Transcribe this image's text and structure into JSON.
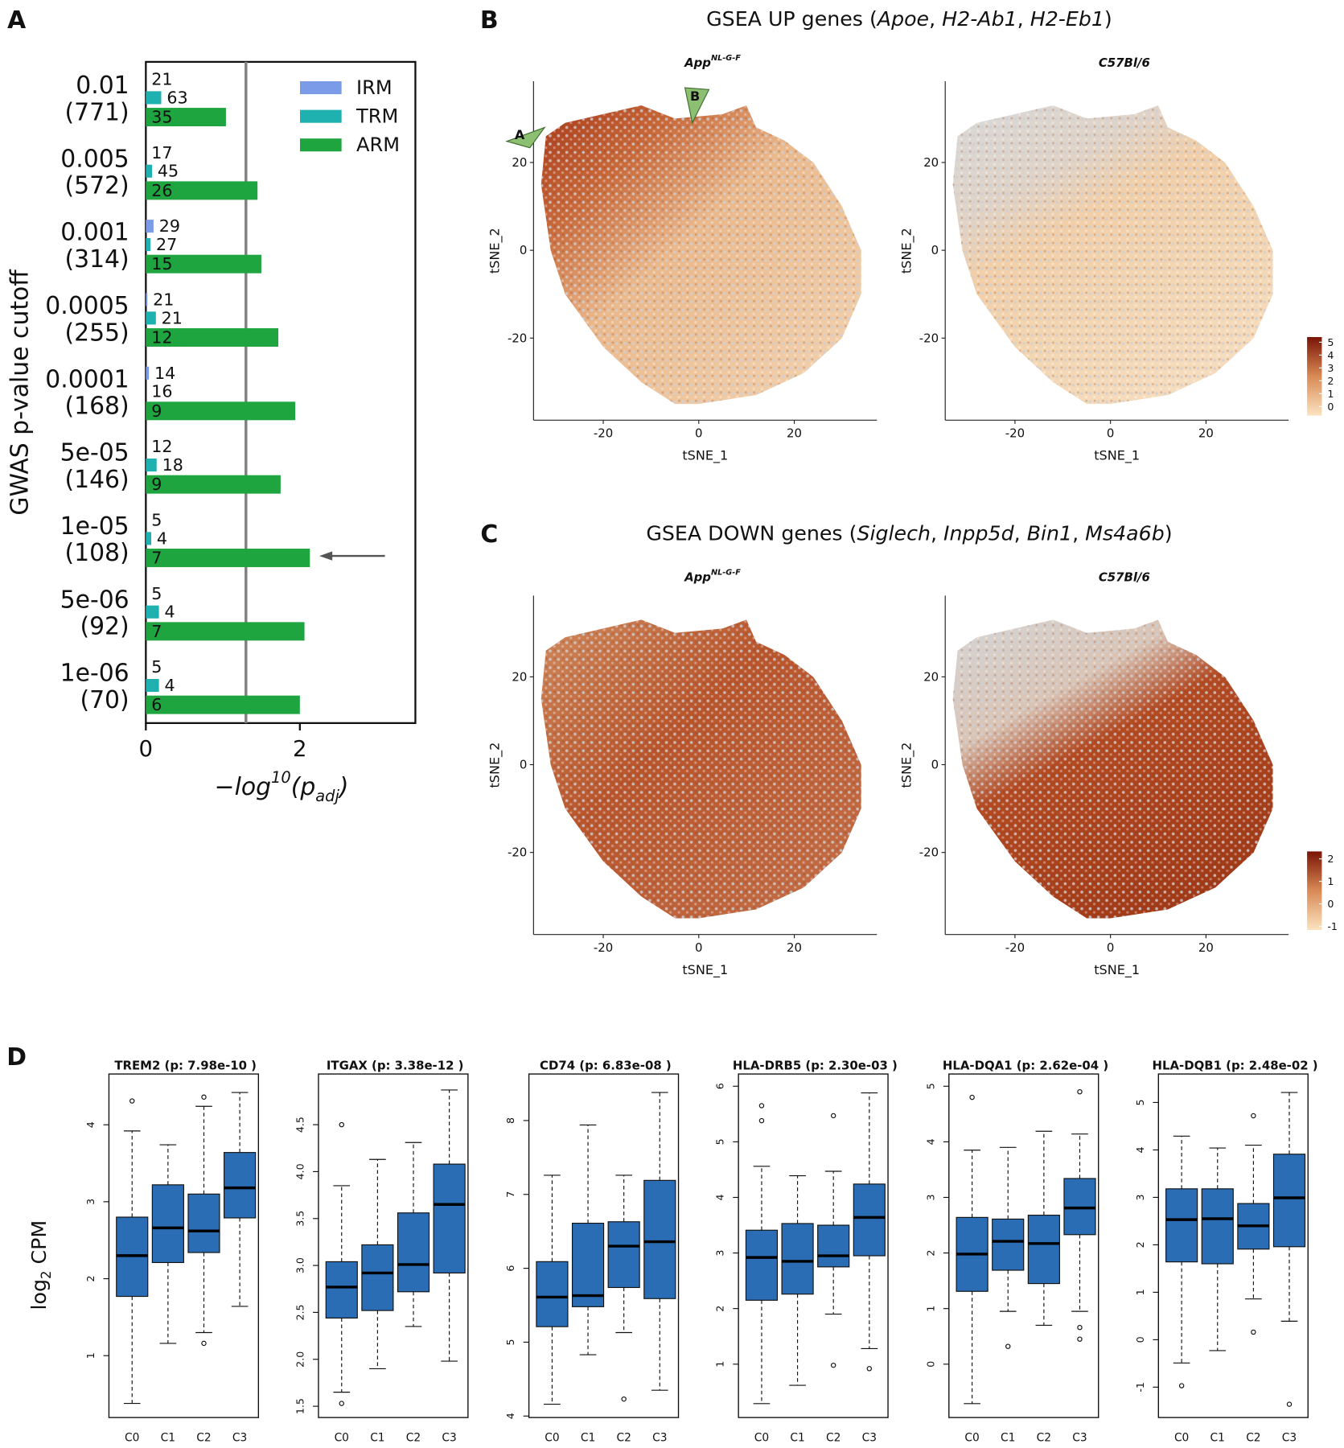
{
  "chart_data": [
    {
      "type": "bar",
      "orientation": "horizontal",
      "panel": "A",
      "ylabel": "GWAS p-value cutoff",
      "xlabel": [
        {
          "text": "−log"
        },
        {
          "text": "10",
          "style": "sup"
        },
        {
          "text": "(p"
        },
        {
          "text": "adj",
          "style": "sub"
        },
        {
          "text": ")"
        }
      ],
      "categories": [
        "0.01",
        "0.005",
        "0.001",
        "0.0005",
        "0.0001",
        "5e-05",
        "1e-05",
        "5e-06",
        "1e-06"
      ],
      "category_counts": [
        "(771)",
        "(572)",
        "(314)",
        "(255)",
        "(168)",
        "(146)",
        "(108)",
        "(92)",
        "(70)"
      ],
      "series": [
        {
          "name": "IRM",
          "color": "#7b9be8",
          "values": [
            0,
            0,
            0.1,
            0.02,
            0.04,
            0,
            0,
            0,
            0
          ],
          "counts": [
            21,
            17,
            29,
            21,
            14,
            12,
            5,
            5,
            5
          ]
        },
        {
          "name": "TRM",
          "color": "#1fb0b0",
          "values": [
            0.2,
            0.08,
            0.06,
            0.13,
            0,
            0.14,
            0.07,
            0.17,
            0.17
          ],
          "counts": [
            63,
            45,
            27,
            21,
            16,
            18,
            4,
            4,
            4
          ]
        },
        {
          "name": "ARM",
          "color": "#1fa540",
          "values": [
            1.04,
            1.45,
            1.5,
            1.72,
            1.94,
            1.75,
            2.13,
            2.06,
            2.0
          ],
          "counts": [
            35,
            26,
            15,
            12,
            9,
            9,
            7,
            7,
            6
          ]
        }
      ],
      "xlim": [
        0,
        3.5
      ],
      "xticks": [
        0,
        2
      ],
      "threshold": 1.3,
      "legend": "upper right"
    },
    {
      "type": "tsne",
      "panel": "B",
      "title": [
        {
          "text": "GSEA UP genes ("
        },
        {
          "text": "Apoe",
          "style": "italic"
        },
        {
          "text": ", "
        },
        {
          "text": "H2-Ab1",
          "style": "italic"
        },
        {
          "text": ", "
        },
        {
          "text": "H2-Eb1",
          "style": "italic"
        },
        {
          "text": ")"
        }
      ],
      "plots": [
        {
          "title": [
            {
              "text": "App"
            },
            {
              "text": "NL-G-F",
              "style": "sup"
            }
          ],
          "xlabel": "tSNE_1",
          "ylabel": "tSNE_2",
          "xlim": [
            -34.6,
            37.3
          ],
          "ylim": [
            -38.7,
            38.5
          ],
          "xticks": [
            -20,
            0,
            20
          ],
          "yticks": [
            -20,
            0,
            20
          ],
          "markers": [
            "A",
            "B"
          ]
        },
        {
          "title": [
            {
              "text": "C57Bl/6"
            }
          ],
          "xlabel": "tSNE_1",
          "ylabel": "tSNE_2",
          "xlim": [
            -34.6,
            37.3
          ],
          "ylim": [
            -38.7,
            38.5
          ],
          "xticks": [
            -20,
            0,
            20
          ],
          "yticks": [
            -20,
            0,
            20
          ]
        }
      ],
      "colorbar": {
        "clim": [
          -0.7,
          5.4
        ],
        "ticks": [
          0,
          1,
          2,
          3,
          4,
          5
        ],
        "colors": [
          "#fbe3c0",
          "#d98a55",
          "#7a1406"
        ]
      }
    },
    {
      "type": "tsne",
      "panel": "C",
      "title": [
        {
          "text": "GSEA DOWN genes ("
        },
        {
          "text": "Siglech",
          "style": "italic"
        },
        {
          "text": ", "
        },
        {
          "text": "Inpp5d",
          "style": "italic"
        },
        {
          "text": ", "
        },
        {
          "text": "Bin1",
          "style": "italic"
        },
        {
          "text": ", "
        },
        {
          "text": "Ms4a6b",
          "style": "italic"
        },
        {
          "text": ")"
        }
      ],
      "plots": [
        {
          "title": [
            {
              "text": "App"
            },
            {
              "text": "NL-G-F",
              "style": "sup"
            }
          ],
          "xlabel": "tSNE_1",
          "ylabel": "tSNE_2",
          "xlim": [
            -34.6,
            37.3
          ],
          "ylim": [
            -38.7,
            38.5
          ],
          "xticks": [
            -20,
            0,
            20
          ],
          "yticks": [
            -20,
            0,
            20
          ]
        },
        {
          "title": [
            {
              "text": "C57Bl/6"
            }
          ],
          "xlabel": "tSNE_1",
          "ylabel": "tSNE_2",
          "xlim": [
            -34.6,
            37.3
          ],
          "ylim": [
            -38.7,
            38.5
          ],
          "xticks": [
            -20,
            0,
            20
          ],
          "yticks": [
            -20,
            0,
            20
          ]
        }
      ],
      "colorbar": {
        "clim": [
          -1.16,
          2.33
        ],
        "ticks": [
          -1,
          0,
          1,
          2
        ],
        "colors": [
          "#fbe3c0",
          "#d98a55",
          "#7a1406"
        ]
      }
    },
    {
      "type": "box",
      "panel": "D",
      "color": "#2a6db5",
      "ylabel": [
        {
          "text": "log"
        },
        {
          "text": "2",
          "style": "sub"
        },
        {
          "text": " CPM"
        }
      ],
      "categories": [
        "C0",
        "C1",
        "C2",
        "C3"
      ],
      "plots": [
        {
          "title": "TREM2 (p: 7.98e-10 )",
          "ylim": [
            0.196,
            4.66
          ],
          "yticks": [
            1,
            2,
            3,
            4
          ],
          "boxes": [
            {
              "low": 0.38,
              "q1": 1.77,
              "median": 2.3,
              "q3": 2.8,
              "high": 3.92,
              "outliers": [
                4.31
              ]
            },
            {
              "low": 1.16,
              "q1": 2.21,
              "median": 2.66,
              "q3": 3.22,
              "high": 3.74,
              "outliers": []
            },
            {
              "low": 1.3,
              "q1": 2.34,
              "median": 2.62,
              "q3": 3.1,
              "high": 4.24,
              "outliers": [
                4.36,
                1.16
              ]
            },
            {
              "low": 1.64,
              "q1": 2.79,
              "median": 3.18,
              "q3": 3.64,
              "high": 4.42,
              "outliers": []
            }
          ]
        },
        {
          "title": "ITGAX (p: 3.38e-12 )",
          "ylim": [
            1.38,
            5.04
          ],
          "yticks": [
            1.5,
            {
              "value": 2,
              "label": "2.0"
            },
            2.5,
            {
              "value": 3,
              "label": "3.0"
            },
            3.5,
            {
              "value": 4,
              "label": "4.0"
            },
            4.5
          ],
          "boxes": [
            {
              "low": 1.65,
              "q1": 2.44,
              "median": 2.77,
              "q3": 3.04,
              "high": 3.85,
              "outliers": [
                4.5,
                1.53
              ]
            },
            {
              "low": 1.9,
              "q1": 2.52,
              "median": 2.92,
              "q3": 3.22,
              "high": 4.13,
              "outliers": []
            },
            {
              "low": 2.35,
              "q1": 2.72,
              "median": 3.01,
              "q3": 3.56,
              "high": 4.31,
              "outliers": []
            },
            {
              "low": 1.98,
              "q1": 2.92,
              "median": 3.65,
              "q3": 4.08,
              "high": 4.87,
              "outliers": []
            }
          ]
        },
        {
          "title": "CD74 (p: 6.83e-08 )",
          "ylim": [
            3.98,
            8.63
          ],
          "yticks": [
            4,
            5,
            6,
            7,
            8
          ],
          "boxes": [
            {
              "low": 4.16,
              "q1": 5.21,
              "median": 5.61,
              "q3": 6.09,
              "high": 7.26,
              "outliers": []
            },
            {
              "low": 4.83,
              "q1": 5.48,
              "median": 5.63,
              "q3": 6.61,
              "high": 7.94,
              "outliers": []
            },
            {
              "low": 5.13,
              "q1": 5.74,
              "median": 6.3,
              "q3": 6.63,
              "high": 7.26,
              "outliers": [
                4.23
              ]
            },
            {
              "low": 4.35,
              "q1": 5.59,
              "median": 6.36,
              "q3": 7.19,
              "high": 8.38,
              "outliers": []
            }
          ]
        },
        {
          "title": "HLA-DRB5 (p: 2.30e-03 )",
          "ylim": [
            0.04,
            6.22
          ],
          "yticks": [
            1,
            2,
            3,
            4,
            5,
            6
          ],
          "boxes": [
            {
              "low": 0.29,
              "q1": 2.15,
              "median": 2.92,
              "q3": 3.41,
              "high": 4.56,
              "outliers": [
                5.65,
                5.38
              ]
            },
            {
              "low": 0.62,
              "q1": 2.26,
              "median": 2.85,
              "q3": 3.53,
              "high": 4.39,
              "outliers": []
            },
            {
              "low": 1.9,
              "q1": 2.75,
              "median": 2.95,
              "q3": 3.5,
              "high": 4.47,
              "outliers": [
                5.47,
                0.98
              ]
            },
            {
              "low": 1.28,
              "q1": 2.95,
              "median": 3.64,
              "q3": 4.24,
              "high": 5.88,
              "outliers": [
                0.92
              ]
            }
          ]
        },
        {
          "title": "HLA-DQA1 (p: 2.62e-04 )",
          "ylim": [
            -0.96,
            5.22
          ],
          "yticks": [
            0,
            1,
            2,
            3,
            4,
            5
          ],
          "boxes": [
            {
              "low": -0.71,
              "q1": 1.31,
              "median": 1.98,
              "q3": 2.64,
              "high": 3.85,
              "outliers": [
                4.8
              ]
            },
            {
              "low": 0.95,
              "q1": 1.69,
              "median": 2.21,
              "q3": 2.61,
              "high": 3.9,
              "outliers": [
                0.32
              ]
            },
            {
              "low": 0.7,
              "q1": 1.45,
              "median": 2.17,
              "q3": 2.68,
              "high": 4.19,
              "outliers": []
            },
            {
              "low": 0.95,
              "q1": 2.33,
              "median": 2.81,
              "q3": 3.34,
              "high": 4.14,
              "outliers": [
                4.9,
                0.66,
                0.45
              ]
            }
          ]
        },
        {
          "title": "HLA-DQB1 (p: 2.48e-02 )",
          "ylim": [
            -1.64,
            5.6
          ],
          "yticks": [
            -1,
            0,
            1,
            2,
            3,
            4,
            5
          ],
          "boxes": [
            {
              "low": -0.49,
              "q1": 1.64,
              "median": 2.53,
              "q3": 3.18,
              "high": 4.29,
              "outliers": [
                -0.97
              ]
            },
            {
              "low": -0.23,
              "q1": 1.6,
              "median": 2.55,
              "q3": 3.18,
              "high": 4.04,
              "outliers": []
            },
            {
              "low": 0.86,
              "q1": 1.91,
              "median": 2.4,
              "q3": 2.87,
              "high": 4.1,
              "outliers": [
                4.72,
                0.16
              ]
            },
            {
              "low": 0.39,
              "q1": 1.96,
              "median": 2.99,
              "q3": 3.91,
              "high": 5.21,
              "outliers": [
                -1.36
              ]
            }
          ]
        }
      ]
    }
  ]
}
